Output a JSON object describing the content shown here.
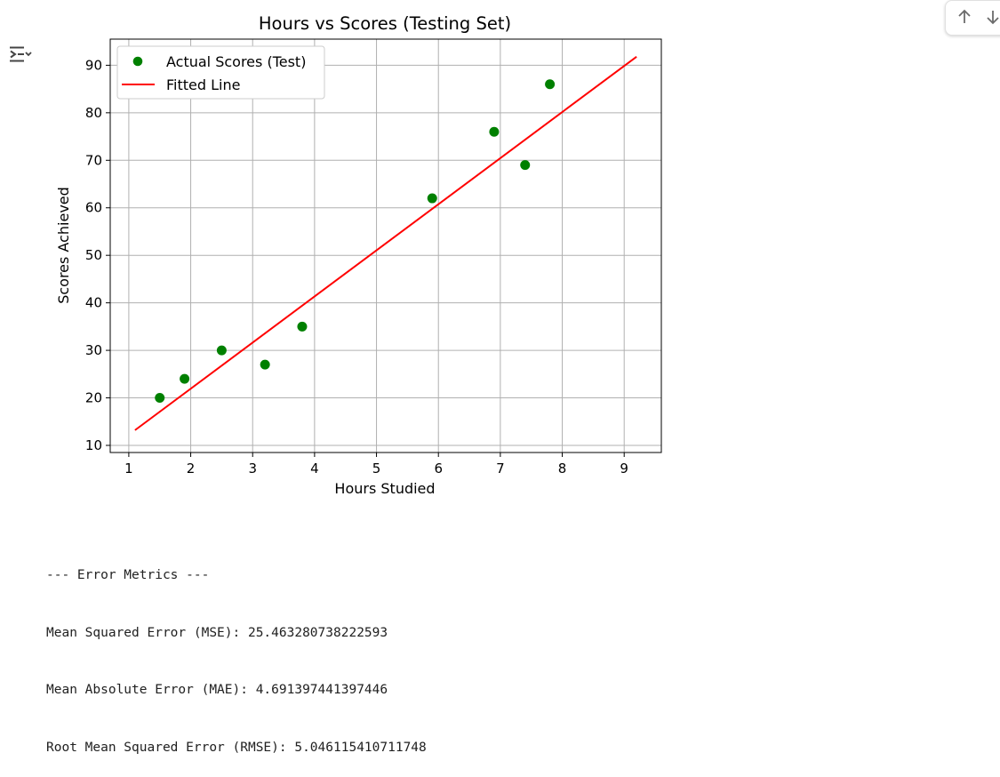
{
  "toolbar": {
    "up_icon": "arrow-up-icon",
    "down_icon": "arrow-down-icon"
  },
  "output": {
    "icon": "output-options-icon"
  },
  "chart_data": {
    "type": "scatter",
    "title": "Hours vs Scores (Testing Set)",
    "xlabel": "Hours Studied",
    "ylabel": "Scores Achieved",
    "xlim": [
      0.7,
      9.6
    ],
    "ylim": [
      8.5,
      95.5
    ],
    "xticks": [
      1,
      2,
      3,
      4,
      5,
      6,
      7,
      8,
      9
    ],
    "yticks": [
      10,
      20,
      30,
      40,
      50,
      60,
      70,
      80,
      90
    ],
    "grid": true,
    "legend_position": "top-left",
    "series": [
      {
        "name": "Actual Scores (Test)",
        "kind": "scatter",
        "color": "#008000",
        "points": [
          {
            "x": 1.5,
            "y": 20
          },
          {
            "x": 1.9,
            "y": 24
          },
          {
            "x": 2.5,
            "y": 30
          },
          {
            "x": 3.2,
            "y": 27
          },
          {
            "x": 3.8,
            "y": 35
          },
          {
            "x": 5.9,
            "y": 62
          },
          {
            "x": 6.9,
            "y": 76
          },
          {
            "x": 7.4,
            "y": 69
          },
          {
            "x": 7.8,
            "y": 86
          }
        ]
      },
      {
        "name": "Fitted Line",
        "kind": "line",
        "color": "#ff0000",
        "points": [
          {
            "x": 1.1,
            "y": 13.2
          },
          {
            "x": 9.2,
            "y": 91.8
          }
        ]
      }
    ]
  },
  "metrics": {
    "header": "--- Error Metrics ---",
    "mse": "Mean Squared Error (MSE): 25.463280738222593",
    "mae": "Mean Absolute Error (MAE): 4.691397441397446",
    "rmse": "Root Mean Squared Error (RMSE): 5.046115410711748"
  }
}
